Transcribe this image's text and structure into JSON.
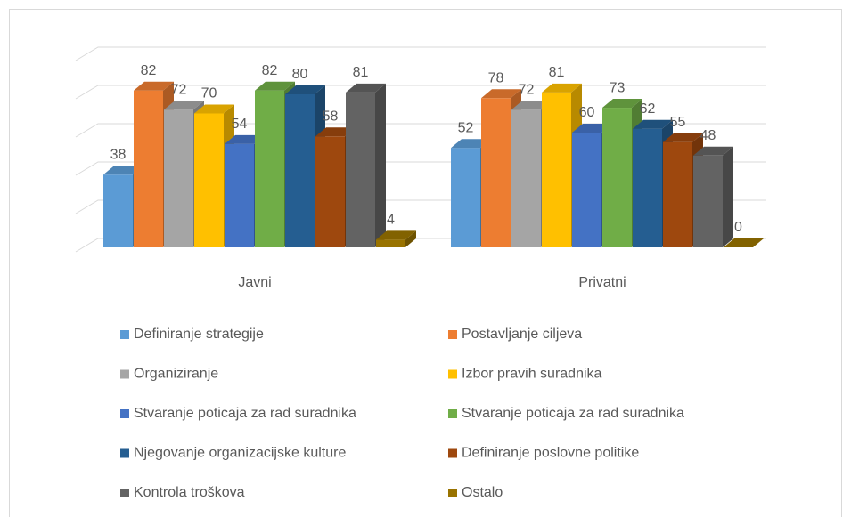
{
  "chart_data": {
    "type": "bar3d",
    "categories": [
      "Javni",
      "Privatni"
    ],
    "series": [
      {
        "name": "Definiranje strategije",
        "color": "#5b9bd5",
        "values": [
          38,
          52
        ]
      },
      {
        "name": "Postavljanje ciljeva",
        "color": "#ed7d31",
        "values": [
          82,
          78
        ]
      },
      {
        "name": "Organiziranje",
        "color": "#a5a5a5",
        "values": [
          72,
          72
        ]
      },
      {
        "name": "Izbor pravih suradnika",
        "color": "#ffc000",
        "values": [
          70,
          81
        ]
      },
      {
        "name": "Stvaranje poticaja za rad suradnika",
        "color": "#4472c4",
        "values": [
          54,
          60
        ]
      },
      {
        "name": "Stvaranje poticaja za rad suradnika",
        "color": "#70ad47",
        "values": [
          82,
          73
        ]
      },
      {
        "name": "Njegovanje organizacijske kulture",
        "color": "#255e91",
        "values": [
          80,
          62
        ]
      },
      {
        "name": "Definiranje poslovne politike",
        "color": "#9e480e",
        "values": [
          58,
          55
        ]
      },
      {
        "name": "Kontrola troškova",
        "color": "#636363",
        "values": [
          81,
          48
        ]
      },
      {
        "name": "Ostalo",
        "color": "#997300",
        "values": [
          4,
          0
        ]
      }
    ],
    "ylim": [
      0,
      100
    ],
    "yticks": [
      0,
      20,
      40,
      60,
      80,
      100
    ],
    "grid": true,
    "legend": "bottom"
  }
}
